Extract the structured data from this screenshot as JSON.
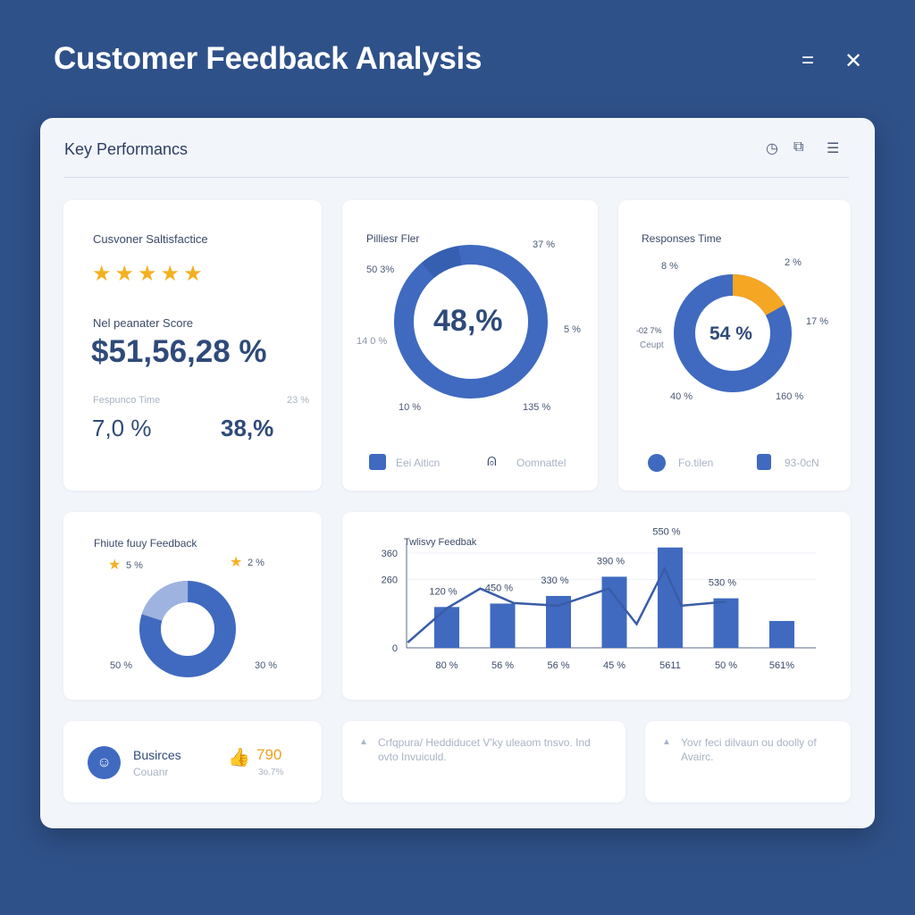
{
  "header": {
    "title": "Customer Feedback Analysis",
    "menu_icon": "menu-icon",
    "close_icon": "close-icon"
  },
  "panel": {
    "title": "Key Performancs",
    "icons": [
      "timer-icon",
      "export-icon",
      "filter-icon"
    ]
  },
  "satisfaction": {
    "title": "Cusvoner Saltisfactice",
    "stars": 5,
    "nps_label": "Nel peanater Score",
    "nps_value": "$51,56,28 %",
    "resp_label": "Fespunco Time",
    "resp_small": "23 %",
    "resp_value": "7,0 %",
    "second_value": "38,%"
  },
  "pillars": {
    "title": "Pilliesr Fler",
    "center": "48,%",
    "labels": [
      "50 3%",
      "37 %",
      "5 %",
      "14 0 %",
      "10 %",
      "135 %"
    ],
    "footer": [
      "Eei Aiticn",
      "Oomnattel"
    ]
  },
  "response": {
    "title": "Responses Time",
    "center": "54 %",
    "highlight_fraction": 0.17,
    "labels": [
      "8 %",
      "2 %",
      "17 %",
      "-02 7%",
      "Ceupt",
      "40 %",
      "160 %"
    ],
    "footer": [
      "Fo.tilen",
      "93-0cN"
    ],
    "colors": {
      "main": "#3f6ac0",
      "accent": "#f5a623"
    }
  },
  "future": {
    "title": "Fhiute fuuy Feedback",
    "light_fraction": 0.2,
    "labels": [
      "5 %",
      "2 %",
      "50 %",
      "30 %"
    ]
  },
  "chart_data": {
    "type": "bar",
    "title": "Twlisvy Feedbak",
    "ylim": [
      0,
      380
    ],
    "yticks": [
      {
        "value": 0,
        "label": "0"
      },
      {
        "value": 260,
        "label": "260"
      },
      {
        "value": 360,
        "label": "360"
      }
    ],
    "categories": [
      "80 %",
      "56 %",
      "56 %",
      "45 %",
      "5611",
      "50 %",
      "561%"
    ],
    "values": [
      155,
      168,
      197,
      270,
      381,
      188,
      102
    ],
    "bar_labels": [
      "120 %",
      "450 %",
      "330 %",
      "390 %",
      "550 %",
      "530 %",
      ""
    ],
    "line": [
      {
        "x": -0.7,
        "y": 20
      },
      {
        "x": 0,
        "y": 150
      },
      {
        "x": 0.6,
        "y": 225
      },
      {
        "x": 1.2,
        "y": 170
      },
      {
        "x": 2,
        "y": 160
      },
      {
        "x": 2.9,
        "y": 225
      },
      {
        "x": 3.4,
        "y": 90
      },
      {
        "x": 3.9,
        "y": 300
      },
      {
        "x": 4.2,
        "y": 160
      },
      {
        "x": 5,
        "y": 175
      }
    ]
  },
  "business": {
    "title": "Busirces",
    "sub": "Couanr",
    "value": "790",
    "value_sub": "3o.7%"
  },
  "note1": "Crfqpura/ Heddiducet V'ky uleaom tnsvo. Ind ovto Invuiculd.",
  "note2": "Yovr feci dilvaun ou doolly of Avairc."
}
